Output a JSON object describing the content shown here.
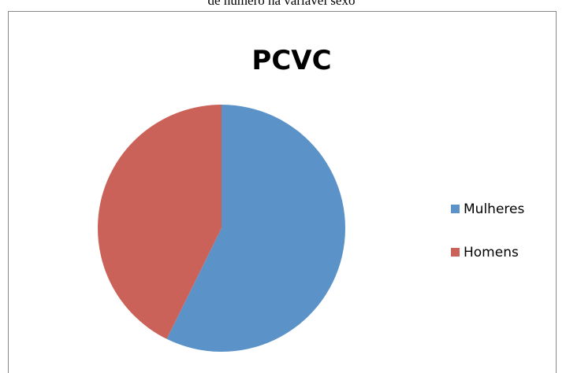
{
  "caption": "de número na variável sexo",
  "chart_data": {
    "type": "pie",
    "title": "PCVC",
    "categories": [
      "Mulheres",
      "Homens"
    ],
    "values": [
      57.3,
      42.7
    ],
    "colors": [
      "#5b93c9",
      "#cb6259"
    ],
    "legend": "right"
  }
}
